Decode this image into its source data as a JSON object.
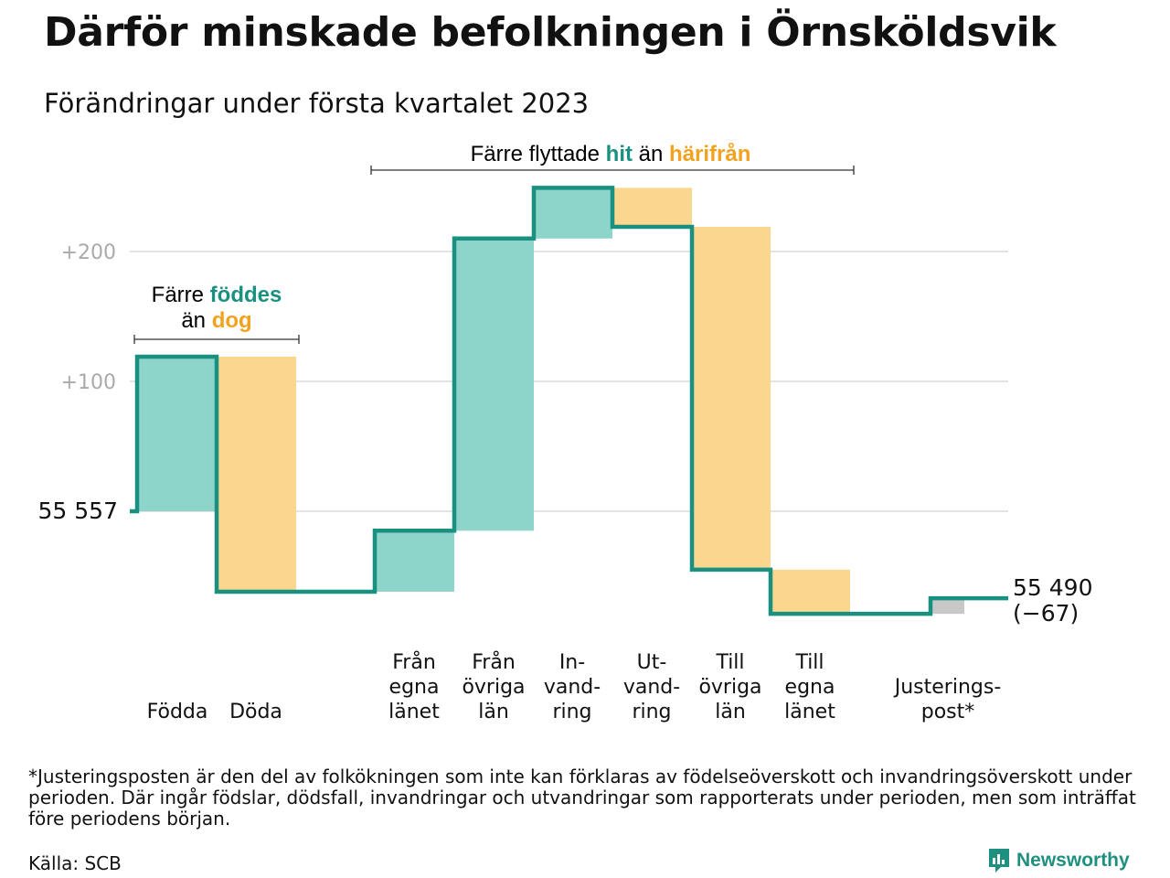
{
  "title": "Därför minskade befolkningen i Örnsköldsvik",
  "subtitle": "Förändringar under första kvartalet 2023",
  "colors": {
    "increase": "#8dd5cb",
    "decrease": "#fbd68f",
    "adjustment": "#c8c8c8",
    "line": "#1a9180",
    "teal_text": "#1a9180",
    "orange_text": "#f2a21e"
  },
  "annotations": {
    "births": {
      "line1_prefix": "Färre ",
      "line1_highlight": "föddes",
      "line2_prefix": "än ",
      "line2_highlight": "dog"
    },
    "migration": {
      "prefix": "Färre flyttade ",
      "highlight1": "hit",
      "middle": " än ",
      "highlight2": "härifrån"
    }
  },
  "chart_data": {
    "type": "waterfall",
    "start_value": 55557,
    "start_label": "55 557",
    "end_value": 55490,
    "end_label": "55 490",
    "end_change_label": "(−67)",
    "y_tick_labels": [
      "+100",
      "+200"
    ],
    "y_ticks": [
      100,
      200
    ],
    "ylim": [
      -90,
      270
    ],
    "steps": [
      {
        "label": [
          "Födda"
        ],
        "change": 119,
        "kind": "increase"
      },
      {
        "label": [
          "Döda"
        ],
        "change": -181,
        "kind": "decrease"
      },
      {
        "label": [
          "Från",
          "egna",
          "länet"
        ],
        "change": 47,
        "kind": "increase"
      },
      {
        "label": [
          "Från",
          "övriga",
          "län"
        ],
        "change": 225,
        "kind": "increase"
      },
      {
        "label": [
          "In-",
          "vand-",
          "ring"
        ],
        "change": 39,
        "kind": "increase"
      },
      {
        "label": [
          "Ut-",
          "vand-",
          "ring"
        ],
        "change": -30,
        "kind": "decrease"
      },
      {
        "label": [
          "Till",
          "övriga",
          "län"
        ],
        "change": -264,
        "kind": "decrease"
      },
      {
        "label": [
          "Till",
          "egna",
          "länet"
        ],
        "change": -34,
        "kind": "decrease"
      },
      {
        "label": [
          "Justerings-",
          "post*"
        ],
        "change": 12,
        "kind": "adjustment"
      }
    ]
  },
  "footnote": "*Justeringsposten är den del av folkökningen som inte kan förklaras av födelseöverskott och invandringsöverskott under perioden. Där ingår födslar, dödsfall, invandringar och utvandringar som rapporterats under perioden, men som inträffat före periodens början.",
  "source": "Källa: SCB",
  "brand": "Newsworthy"
}
